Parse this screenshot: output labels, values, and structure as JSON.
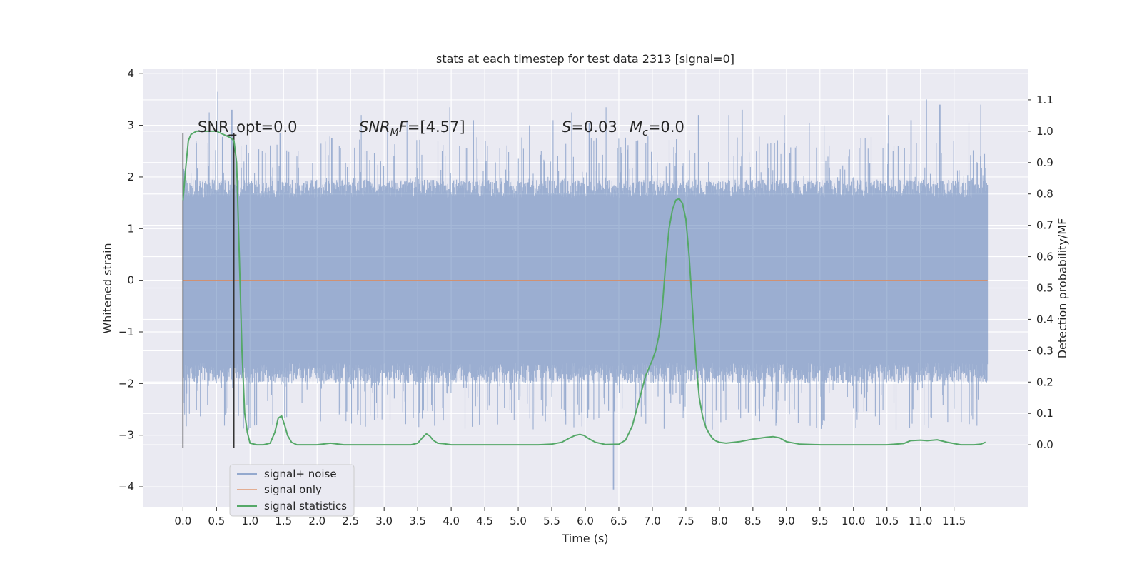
{
  "chart_data": {
    "type": "line",
    "title": "stats at each timestep for test data 2313 [signal=0]",
    "xlabel": "Time (s)",
    "ylabel": "Whitened strain",
    "y2label": "Detection probability/MF",
    "xlim": [
      -0.6,
      12.6
    ],
    "ylim": [
      -4.4,
      4.1
    ],
    "y2lim": [
      -0.2,
      1.2
    ],
    "xticks": [
      "0.0",
      "0.5",
      "1.0",
      "1.5",
      "2.0",
      "2.5",
      "3.0",
      "3.5",
      "4.0",
      "4.5",
      "5.0",
      "5.5",
      "6.0",
      "6.5",
      "7.0",
      "7.5",
      "8.0",
      "8.5",
      "9.0",
      "9.5",
      "10.0",
      "10.5",
      "11.0",
      "11.5"
    ],
    "yticks": [
      "4",
      "3",
      "2",
      "1",
      "0",
      "−1",
      "−2",
      "−3",
      "−4"
    ],
    "y2ticks": [
      "1.1",
      "1.0",
      "0.9",
      "0.8",
      "0.7",
      "0.6",
      "0.5",
      "0.4",
      "0.3",
      "0.2",
      "0.1",
      "0.0"
    ],
    "grid": true,
    "legend_position": "lower-left",
    "annotations": {
      "snr_opt": "SNR_opt=0.0",
      "snr_mf_sym": "SNR",
      "snr_mf_sub": "M",
      "snr_mf_f": "F",
      "snr_mf_val": "=[4.57]",
      "s_sym": "S",
      "s_val": "=0.03",
      "mc_sym": "M",
      "mc_sub": "c",
      "mc_val": "=0.0"
    },
    "window_markers_x": [
      0.0,
      0.76
    ],
    "series": [
      {
        "name": "signal+ noise",
        "axis": "left",
        "color": "#4c72b0",
        "duration": 12.0,
        "envelope_lo": -1.6,
        "envelope_hi": 1.6,
        "peak_times": [
          0.52,
          0.39,
          0.73,
          1.45,
          2.22,
          2.66,
          3.05,
          3.34,
          3.98,
          4.33,
          5.17,
          5.52,
          5.8,
          6.06,
          6.31,
          6.42,
          7.69,
          8.14,
          8.34,
          8.97,
          9.34,
          9.56,
          10.11,
          10.52,
          10.86,
          11.09,
          11.29,
          11.72,
          11.9
        ],
        "peak_values": [
          3.65,
          3.25,
          3.3,
          2.85,
          2.75,
          3.2,
          3.0,
          3.1,
          3.35,
          3.1,
          3.0,
          3.1,
          3.25,
          3.05,
          3.35,
          -4.05,
          3.2,
          3.2,
          3.3,
          3.2,
          3.05,
          3.0,
          2.75,
          3.2,
          3.1,
          3.5,
          3.4,
          3.05,
          3.4
        ]
      },
      {
        "name": "signal only",
        "axis": "left",
        "color": "#dd8452",
        "x": [
          0.0,
          12.0
        ],
        "y": [
          0.0,
          0.0
        ]
      },
      {
        "name": "signal statistics",
        "axis": "right",
        "color": "#55a868",
        "x": [
          0.0,
          0.04,
          0.08,
          0.12,
          0.2,
          0.3,
          0.5,
          0.7,
          0.76,
          0.8,
          0.84,
          0.88,
          0.92,
          0.96,
          1.0,
          1.1,
          1.2,
          1.3,
          1.37,
          1.42,
          1.47,
          1.52,
          1.56,
          1.62,
          1.7,
          1.8,
          2.0,
          2.2,
          2.4,
          2.6,
          3.0,
          3.4,
          3.5,
          3.58,
          3.63,
          3.68,
          3.73,
          3.8,
          3.9,
          4.0,
          4.2,
          4.5,
          5.0,
          5.3,
          5.5,
          5.65,
          5.75,
          5.85,
          5.92,
          5.98,
          6.05,
          6.15,
          6.3,
          6.5,
          6.6,
          6.7,
          6.8,
          6.9,
          7.0,
          7.05,
          7.1,
          7.15,
          7.2,
          7.25,
          7.3,
          7.35,
          7.4,
          7.45,
          7.5,
          7.55,
          7.6,
          7.65,
          7.7,
          7.75,
          7.8,
          7.85,
          7.9,
          7.95,
          8.0,
          8.1,
          8.3,
          8.5,
          8.7,
          8.8,
          8.9,
          9.0,
          9.2,
          9.5,
          10.0,
          10.5,
          10.75,
          10.85,
          11.0,
          11.1,
          11.25,
          11.4,
          11.6,
          11.8,
          11.9,
          11.97
        ],
        "y": [
          0.78,
          0.88,
          0.97,
          0.99,
          1.0,
          1.0,
          1.0,
          0.98,
          0.97,
          0.9,
          0.6,
          0.3,
          0.1,
          0.04,
          0.005,
          0.0,
          0.0,
          0.005,
          0.04,
          0.085,
          0.092,
          0.06,
          0.03,
          0.008,
          0.0,
          0.0,
          0.0,
          0.005,
          0.0,
          0.0,
          0.0,
          0.0,
          0.005,
          0.025,
          0.035,
          0.028,
          0.015,
          0.005,
          0.003,
          0.0,
          0.0,
          0.0,
          0.0,
          0.0,
          0.002,
          0.008,
          0.02,
          0.03,
          0.033,
          0.03,
          0.02,
          0.008,
          0.001,
          0.002,
          0.015,
          0.06,
          0.14,
          0.22,
          0.27,
          0.3,
          0.35,
          0.44,
          0.58,
          0.69,
          0.75,
          0.78,
          0.785,
          0.77,
          0.72,
          0.6,
          0.43,
          0.27,
          0.15,
          0.09,
          0.055,
          0.035,
          0.02,
          0.012,
          0.008,
          0.005,
          0.01,
          0.018,
          0.024,
          0.026,
          0.022,
          0.01,
          0.002,
          0.0,
          0.0,
          0.0,
          0.004,
          0.013,
          0.015,
          0.013,
          0.016,
          0.008,
          0.0,
          0.0,
          0.002,
          0.008
        ]
      }
    ]
  }
}
